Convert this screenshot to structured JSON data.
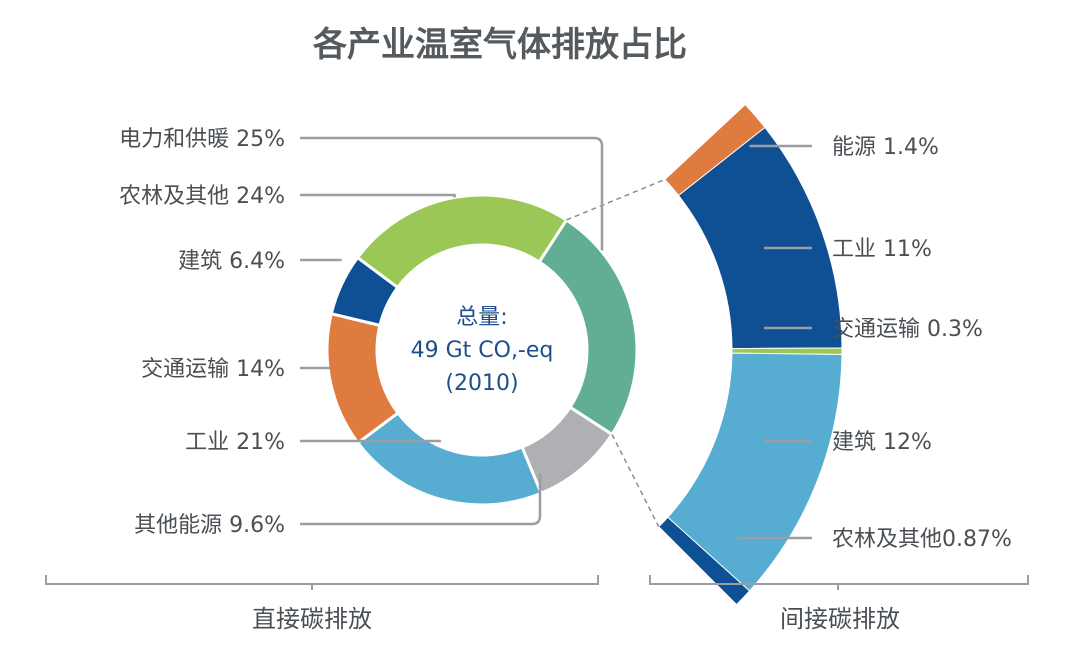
{
  "chart_data": {
    "type": "pie",
    "title": "各产业温室气体排放占比",
    "center_label": [
      "总量:",
      "49 Gt CO,-eq",
      "(2010)"
    ],
    "direct": {
      "group_label": "直接碳排放",
      "slices": [
        {
          "label": "电力和供暖 25%",
          "value": 25,
          "color": "#62ae95"
        },
        {
          "label": "其他能源 9.6%",
          "value": 9.6,
          "color": "#aeb0b3"
        },
        {
          "label": "工业 21%",
          "value": 21,
          "color": "#56acd1"
        },
        {
          "label": "交通运输 14%",
          "value": 14,
          "color": "#e07b3f"
        },
        {
          "label": "建筑 6.4%",
          "value": 6.4,
          "color": "#0f4f94"
        },
        {
          "label": "农林及其他 24%",
          "value": 24,
          "color": "#9bc756"
        }
      ]
    },
    "indirect": {
      "group_label": "间接碳排放",
      "segments": [
        {
          "label": "能源 1.4%",
          "value": 1.4,
          "color": "#e07b3f"
        },
        {
          "label": "工业 11%",
          "value": 11,
          "color": "#0f4f94"
        },
        {
          "label": "交通运输 0.3%",
          "value": 0.3,
          "color": "#9bc756"
        },
        {
          "label": "建筑 12%",
          "value": 12,
          "color": "#56acd1"
        },
        {
          "label": "农林及其他0.87%",
          "value": 0.87,
          "color": "#0f4f94"
        }
      ]
    }
  }
}
